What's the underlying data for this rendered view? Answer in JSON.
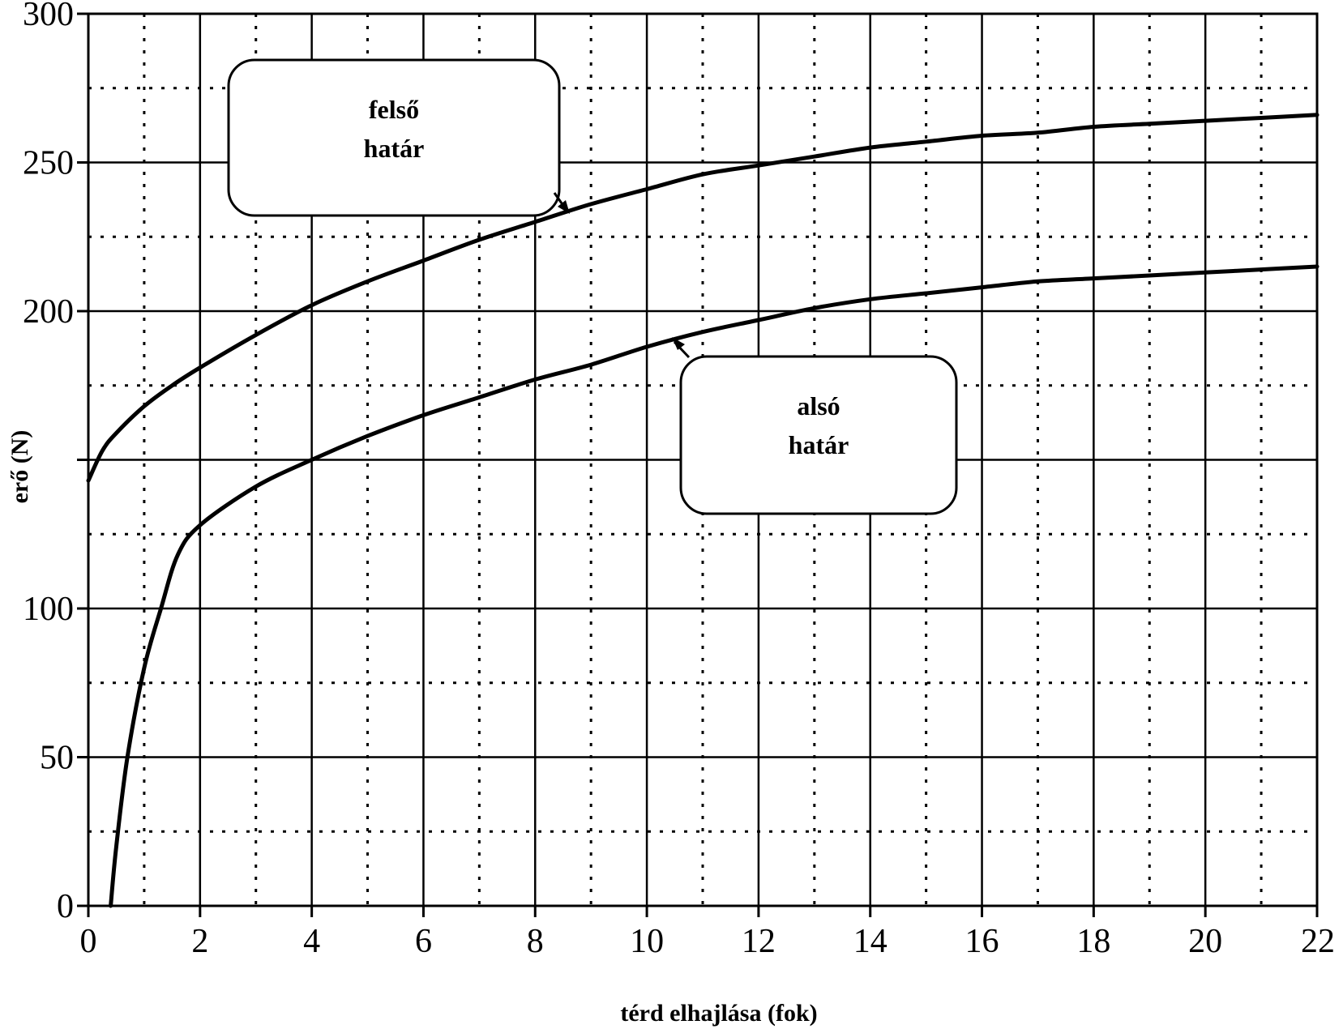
{
  "chart_data": {
    "type": "line",
    "xlabel": "térd elhajlása (fok)",
    "ylabel": "erő (N)",
    "xlim": [
      0,
      22
    ],
    "ylim": [
      0,
      300
    ],
    "x_ticks": [
      0,
      2,
      4,
      6,
      8,
      10,
      12,
      14,
      16,
      18,
      20,
      22
    ],
    "y_tick_labels": [
      {
        "value": 0,
        "label": "0"
      },
      {
        "value": 50,
        "label": "50"
      },
      {
        "value": 100,
        "label": "100"
      },
      {
        "value": 150,
        "label": ""
      },
      {
        "value": 200,
        "label": "200"
      },
      {
        "value": 250,
        "label": "250"
      },
      {
        "value": 300,
        "label": "300"
      }
    ],
    "grid": {
      "major_x_step": 2,
      "minor_x_step": 1,
      "major_y_step": 50,
      "minor_y_step": 25,
      "minor_style": "dotted"
    },
    "series": [
      {
        "name": "felső határ",
        "callout_lines": [
          "felső",
          "határ"
        ],
        "x": [
          0,
          0.25,
          0.5,
          1,
          1.5,
          2,
          3,
          4,
          5,
          6,
          7,
          8,
          9,
          10,
          11,
          12,
          13,
          14,
          15,
          16,
          17,
          18,
          19,
          20,
          21,
          22
        ],
        "y": [
          143,
          153,
          159,
          168,
          175,
          181,
          192,
          202,
          210,
          217,
          224,
          230,
          236,
          241,
          246,
          249,
          252,
          255,
          257,
          259,
          260,
          262,
          263,
          264,
          265,
          266
        ]
      },
      {
        "name": "alsó határ",
        "callout_lines": [
          "alsó",
          "határ"
        ],
        "x": [
          0.4,
          0.5,
          0.7,
          1,
          1.3,
          1.6,
          2,
          3,
          4,
          5,
          6,
          7,
          8,
          9,
          10,
          11,
          12,
          13,
          14,
          15,
          16,
          17,
          18,
          19,
          20,
          21,
          22
        ],
        "y": [
          0,
          20,
          50,
          80,
          100,
          118,
          128,
          141,
          150,
          158,
          165,
          171,
          177,
          182,
          188,
          193,
          197,
          201,
          204,
          206,
          208,
          210,
          211,
          212,
          213,
          214,
          215
        ]
      }
    ]
  }
}
